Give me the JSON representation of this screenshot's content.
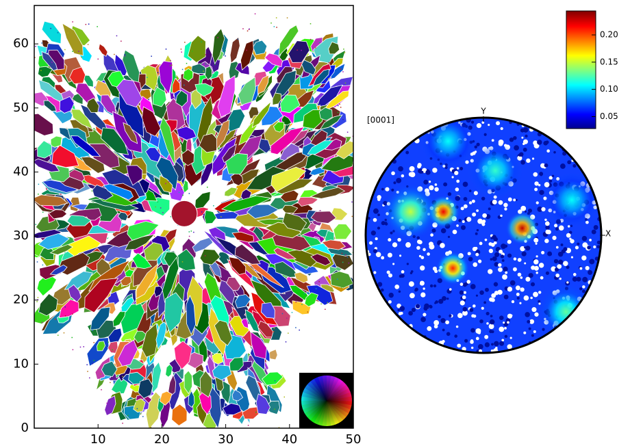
{
  "chart_data": [
    {
      "type": "map",
      "xlim": [
        0,
        50
      ],
      "ylim": [
        0,
        66
      ],
      "xticks": [
        10,
        20,
        30,
        40,
        50
      ],
      "yticks": [
        0,
        10,
        20,
        30,
        40,
        50,
        60
      ]
    },
    {
      "type": "pole-figure",
      "title": "[0001]",
      "x_axis_label": "X",
      "y_axis_label": "Y",
      "clim": [
        0.028,
        0.244
      ],
      "cticks": [
        0.05,
        {
          "value": 0.1,
          "label": "0.10"
        },
        0.15,
        {
          "value": 0.2,
          "label": "0.20"
        }
      ],
      "peaks": [
        {
          "x": -0.34,
          "y": 0.2,
          "value": 0.22
        },
        {
          "x": 0.33,
          "y": 0.06,
          "value": 0.23
        },
        {
          "x": -0.26,
          "y": -0.28,
          "value": 0.21
        },
        {
          "x": -0.62,
          "y": 0.2,
          "value": 0.15
        },
        {
          "x": 0.1,
          "y": 0.55,
          "value": 0.12
        },
        {
          "x": -0.3,
          "y": 0.8,
          "value": 0.11
        },
        {
          "x": 0.75,
          "y": 0.3,
          "value": 0.11
        },
        {
          "x": 0.7,
          "y": -0.65,
          "value": 0.13
        }
      ]
    }
  ]
}
